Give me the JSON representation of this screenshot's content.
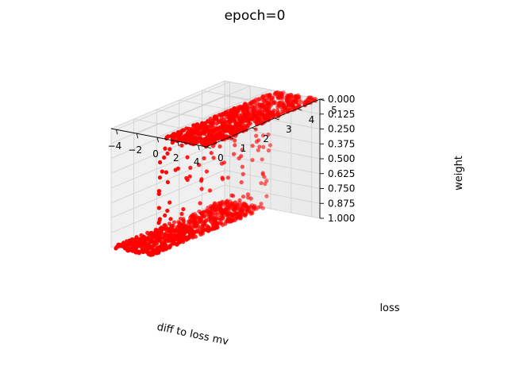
{
  "chart_data": {
    "type": "scatter",
    "title": "epoch=0",
    "xlabel": "diff to loss mv",
    "ylabel": "loss",
    "zlabel": "weight",
    "xlim": [
      -4.5,
      4.8
    ],
    "ylim": [
      0,
      5
    ],
    "zlim": [
      0,
      1
    ],
    "xticks": [
      -4,
      -2,
      0,
      2,
      4
    ],
    "xtick_labels": [
      "−4",
      "−2",
      "0",
      "2",
      "4"
    ],
    "yticks": [
      0,
      1,
      2,
      3,
      4,
      5
    ],
    "ytick_labels": [
      "0",
      "1",
      "2",
      "3",
      "4",
      "5"
    ],
    "zticks": [
      0,
      0.125,
      0.25,
      0.375,
      0.5,
      0.625,
      0.75,
      0.875,
      1.0
    ],
    "ztick_labels": [
      "0.000",
      "0.125",
      "0.250",
      "0.375",
      "0.500",
      "0.625",
      "0.750",
      "0.875",
      "1.000"
    ],
    "grid": true,
    "point_color": "#ff0000",
    "pane_color": "#f2f2f2",
    "description_of_distribution": {
      "plateau_high": {
        "x_range": [
          -4.5,
          -0.5
        ],
        "y_range": [
          0,
          5
        ],
        "weight": 1.0
      },
      "transition": {
        "x_range": [
          -0.5,
          0.5
        ],
        "y_range": [
          0,
          5
        ],
        "weight_range": [
          0,
          1
        ]
      },
      "plateau_low": {
        "x_range": [
          0.5,
          4.8
        ],
        "y_range": [
          0,
          5
        ],
        "weight": 0.0
      }
    },
    "n_points_shown": 1600
  }
}
